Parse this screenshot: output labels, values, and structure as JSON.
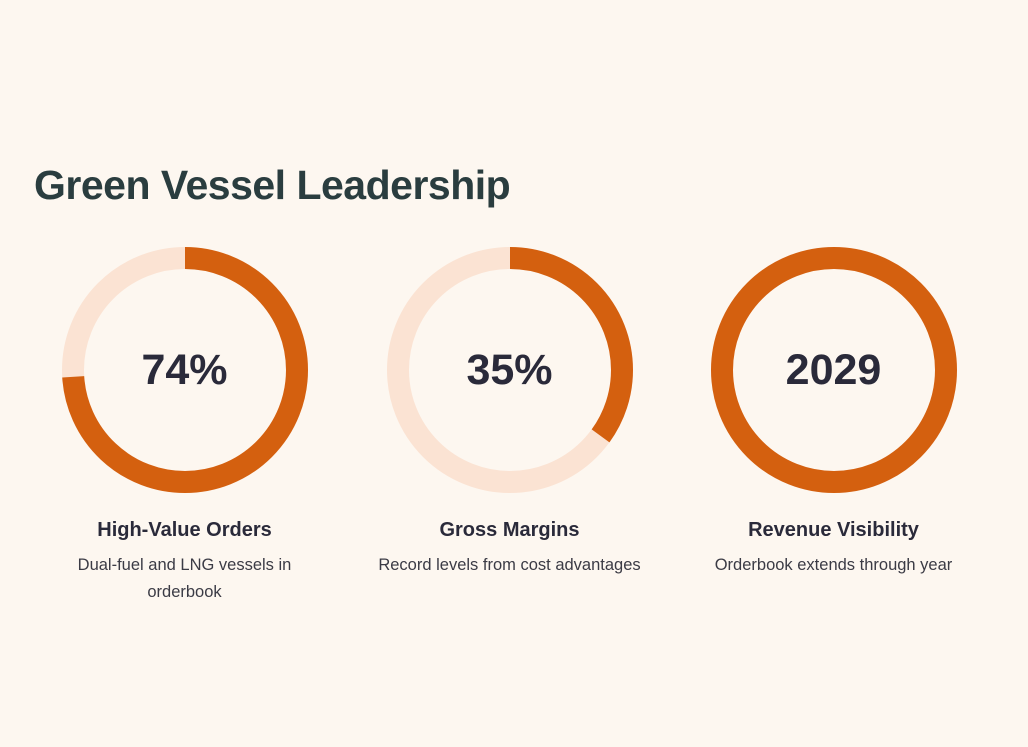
{
  "title": "Green Vessel Leadership",
  "colors": {
    "background": "#fdf7f0",
    "accent": "#d4600f",
    "track": "#fbe3d3",
    "title": "#2a3d3f",
    "text": "#2a2a3a"
  },
  "chart_data": [
    {
      "type": "pie",
      "value_label": "74%",
      "fraction": 0.74,
      "title": "High-Value Orders",
      "description": "Dual-fuel and LNG vessels in orderbook"
    },
    {
      "type": "pie",
      "value_label": "35%",
      "fraction": 0.35,
      "title": "Gross Margins",
      "description": "Record levels from cost advantages"
    },
    {
      "type": "pie",
      "value_label": "2029",
      "fraction": 1.0,
      "title": "Revenue Visibility",
      "description": "Orderbook extends through year"
    }
  ]
}
